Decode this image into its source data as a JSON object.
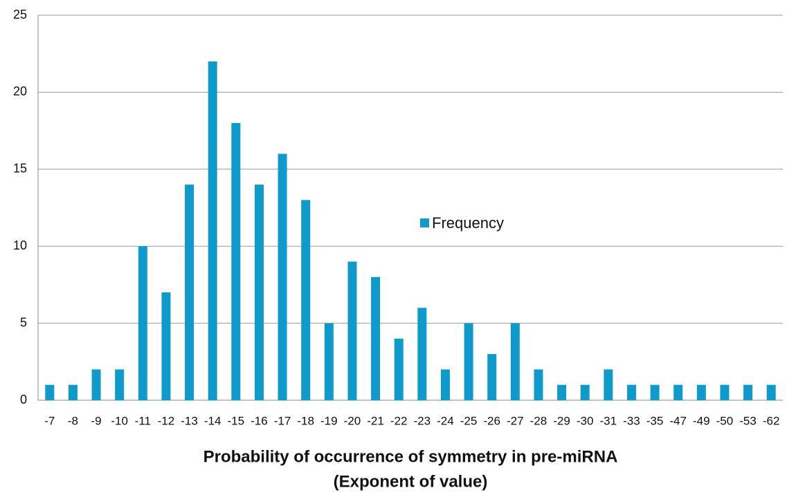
{
  "chart_data": {
    "type": "bar",
    "xlabel": [
      "Probability of occurrence of symmetry in pre-miRNA",
      "(Exponent of value)"
    ],
    "categories": [
      "-7",
      "-8",
      "-9",
      "-10",
      "-11",
      "-12",
      "-13",
      "-14",
      "-15",
      "-16",
      "-17",
      "-18",
      "-19",
      "-20",
      "-21",
      "-22",
      "-23",
      "-24",
      "-25",
      "-26",
      "-27",
      "-28",
      "-29",
      "-30",
      "-31",
      "-33",
      "-35",
      "-47",
      "-49",
      "-50",
      "-53",
      "-62"
    ],
    "series": [
      {
        "name": "Frequency",
        "color": "#0e9bcb",
        "values": [
          1,
          1,
          2,
          2,
          10,
          7,
          14,
          22,
          18,
          14,
          16,
          13,
          5,
          9,
          8,
          4,
          6,
          2,
          5,
          3,
          5,
          2,
          1,
          1,
          2,
          1,
          1,
          1,
          1,
          1,
          1,
          1
        ]
      }
    ],
    "ylim": [
      0,
      25
    ],
    "yticks": [
      0,
      5,
      10,
      15,
      20,
      25
    ],
    "grid": true,
    "legend": "center"
  }
}
